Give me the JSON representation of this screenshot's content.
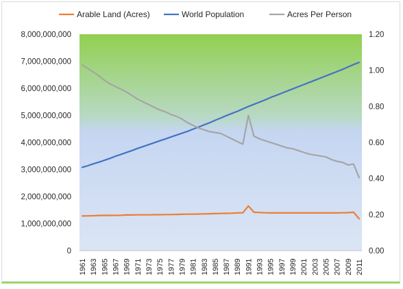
{
  "chart_data": {
    "type": "line",
    "title": "",
    "legend": {
      "placement": "top",
      "entries": [
        "Arable Land (Acres)",
        "World Population",
        "Acres Per Person"
      ]
    },
    "x": [
      1961,
      1962,
      1963,
      1964,
      1965,
      1966,
      1967,
      1968,
      1969,
      1970,
      1971,
      1972,
      1973,
      1974,
      1975,
      1976,
      1977,
      1978,
      1979,
      1980,
      1981,
      1982,
      1983,
      1984,
      1985,
      1986,
      1987,
      1988,
      1989,
      1990,
      1991,
      1992,
      1993,
      1994,
      1995,
      1996,
      1997,
      1998,
      1999,
      2000,
      2001,
      2002,
      2003,
      2004,
      2005,
      2006,
      2007,
      2008,
      2009,
      2010,
      2011
    ],
    "x_tick_labels": [
      "1961",
      "1963",
      "1965",
      "1967",
      "1969",
      "1971",
      "1973",
      "1975",
      "1977",
      "1979",
      "1981",
      "1983",
      "1985",
      "1987",
      "1989",
      "1991",
      "1993",
      "1995",
      "1997",
      "1999",
      "2001",
      "2003",
      "2005",
      "2007",
      "2009",
      "2011"
    ],
    "ylim_left": [
      0,
      8000000000
    ],
    "y_left_tick_labels": [
      "0",
      "1,000,000,000",
      "2,000,000,000",
      "3,000,000,000",
      "4,000,000,000",
      "5,000,000,000",
      "6,000,000,000",
      "7,000,000,000",
      "8,000,000,000"
    ],
    "ylim_right": [
      0,
      1.2
    ],
    "y_right_tick_labels": [
      "0.00",
      "0.20",
      "0.40",
      "0.60",
      "0.80",
      "1.00",
      "1.20"
    ],
    "grid": false,
    "series": [
      {
        "name": "Arable Land (Acres)",
        "axis": "left",
        "color": "#ed7d31",
        "values": [
          1280000000,
          1285000000,
          1290000000,
          1300000000,
          1305000000,
          1305000000,
          1305000000,
          1310000000,
          1320000000,
          1320000000,
          1325000000,
          1325000000,
          1325000000,
          1330000000,
          1330000000,
          1335000000,
          1335000000,
          1340000000,
          1345000000,
          1350000000,
          1350000000,
          1355000000,
          1360000000,
          1365000000,
          1370000000,
          1375000000,
          1380000000,
          1385000000,
          1395000000,
          1400000000,
          1650000000,
          1420000000,
          1410000000,
          1400000000,
          1395000000,
          1395000000,
          1395000000,
          1395000000,
          1395000000,
          1395000000,
          1395000000,
          1395000000,
          1395000000,
          1395000000,
          1395000000,
          1395000000,
          1395000000,
          1400000000,
          1405000000,
          1420000000,
          1180000000
        ]
      },
      {
        "name": "World Population",
        "axis": "left",
        "color": "#4472c4",
        "values": [
          3080000000,
          3140000000,
          3210000000,
          3270000000,
          3340000000,
          3410000000,
          3490000000,
          3560000000,
          3630000000,
          3700000000,
          3780000000,
          3850000000,
          3920000000,
          3990000000,
          4060000000,
          4130000000,
          4200000000,
          4270000000,
          4340000000,
          4410000000,
          4490000000,
          4570000000,
          4650000000,
          4730000000,
          4820000000,
          4900000000,
          4990000000,
          5070000000,
          5150000000,
          5240000000,
          5330000000,
          5410000000,
          5490000000,
          5570000000,
          5660000000,
          5740000000,
          5820000000,
          5900000000,
          5980000000,
          6060000000,
          6140000000,
          6220000000,
          6300000000,
          6380000000,
          6460000000,
          6540000000,
          6620000000,
          6700000000,
          6790000000,
          6880000000,
          6960000000
        ]
      },
      {
        "name": "Acres Per Person",
        "axis": "right",
        "color": "#a5a5a5",
        "values": [
          1.03,
          1.01,
          0.99,
          0.97,
          0.945,
          0.925,
          0.91,
          0.895,
          0.88,
          0.86,
          0.84,
          0.825,
          0.81,
          0.795,
          0.78,
          0.77,
          0.755,
          0.745,
          0.73,
          0.71,
          0.695,
          0.68,
          0.67,
          0.66,
          0.655,
          0.65,
          0.635,
          0.62,
          0.605,
          0.59,
          0.75,
          0.635,
          0.62,
          0.61,
          0.6,
          0.59,
          0.58,
          0.57,
          0.565,
          0.555,
          0.545,
          0.535,
          0.53,
          0.525,
          0.52,
          0.505,
          0.495,
          0.49,
          0.475,
          0.48,
          0.405
        ]
      }
    ]
  }
}
